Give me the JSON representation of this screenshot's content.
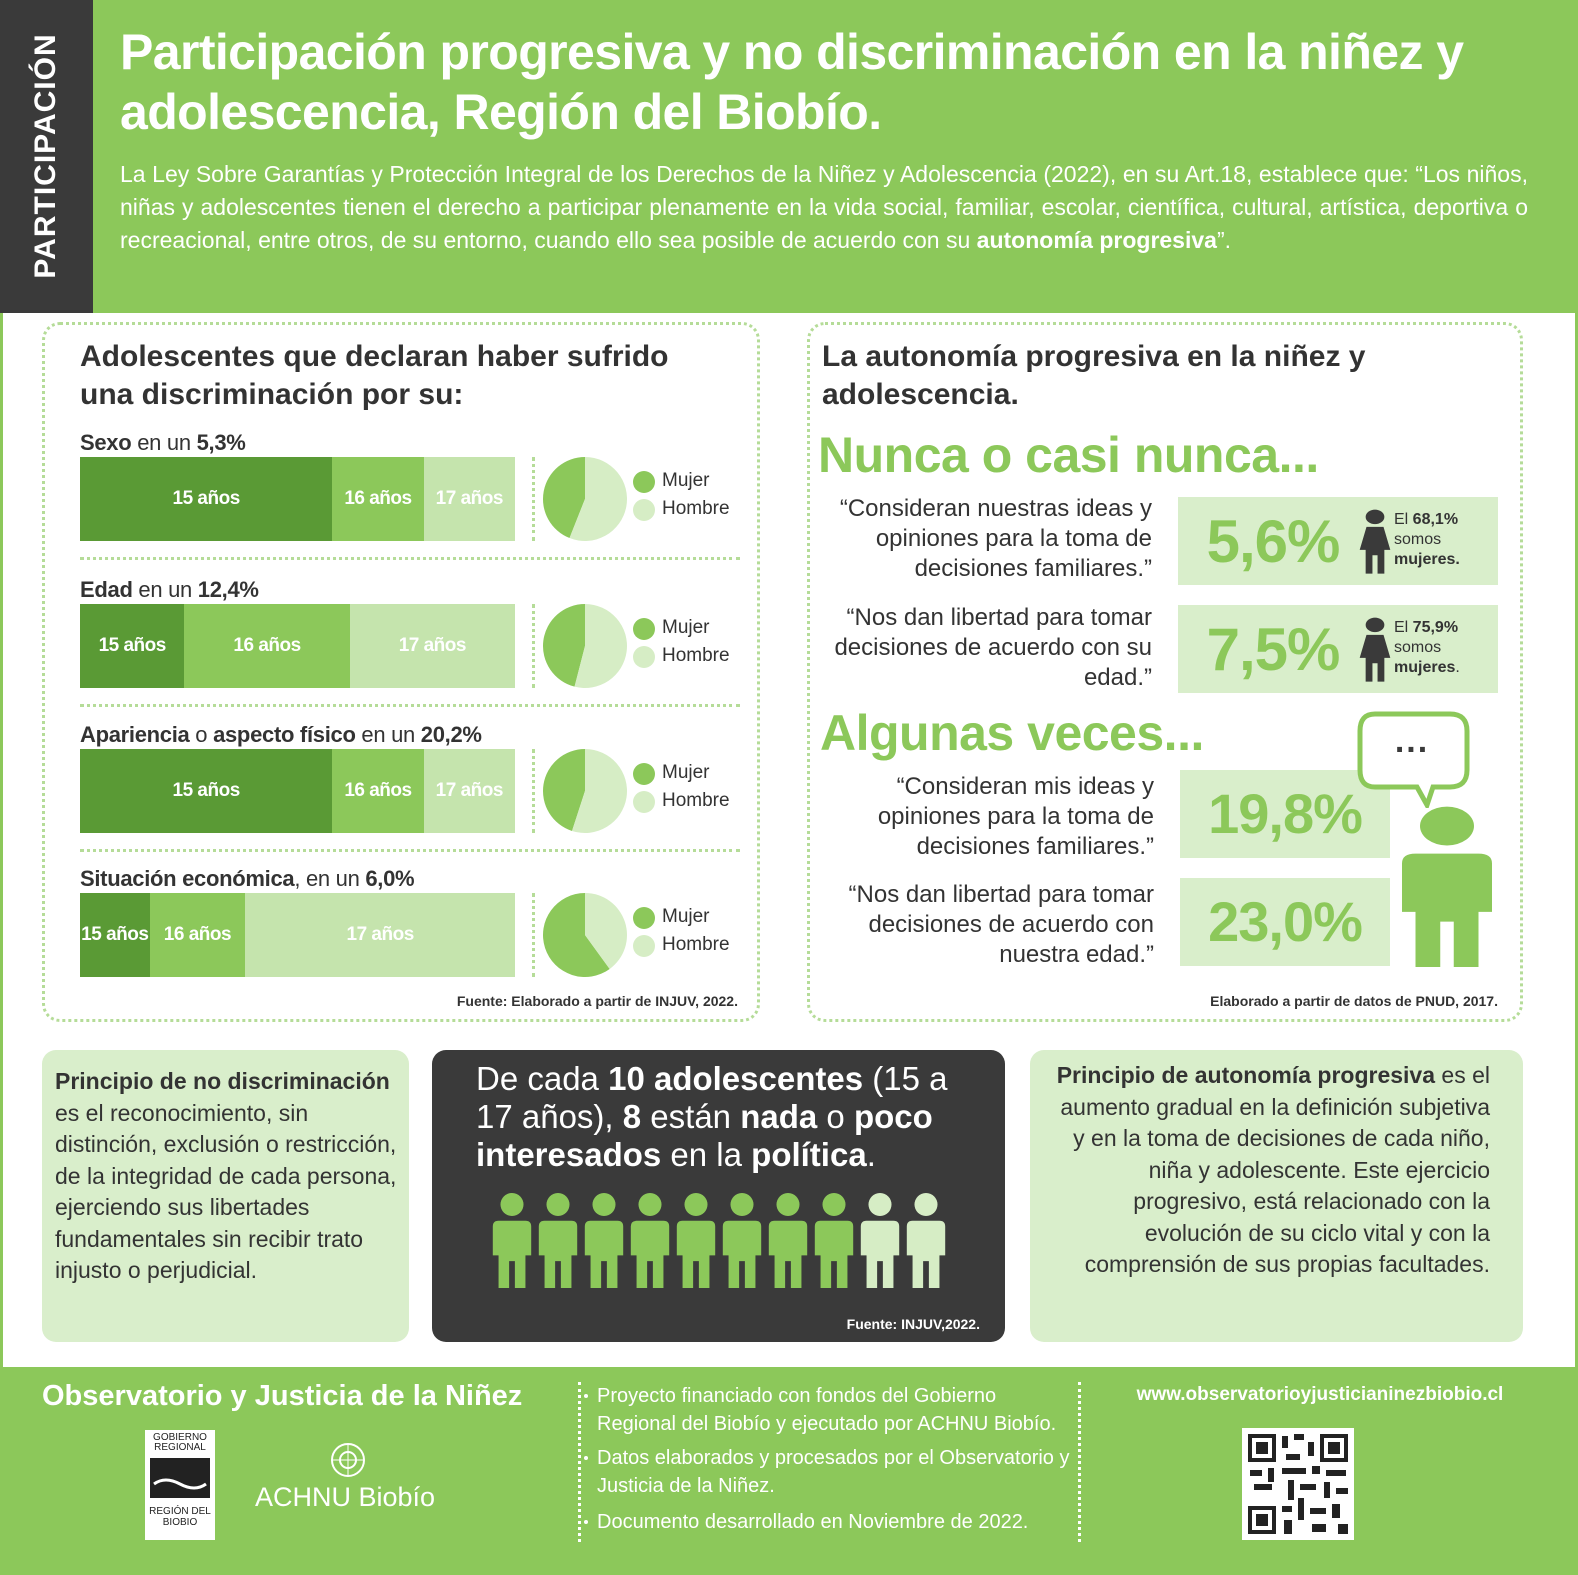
{
  "header": {
    "side_label": "PARTICIPACIÓN",
    "title": "Participación progresiva y no discriminación en la niñez y adolescencia, Región del Biobío.",
    "intro": [
      "La Ley Sobre Garantías y Protección Integral de los Derechos de la Niñez y Adolescencia (2022), en su Art.18, establece que: “Los niños, niñas y adolescentes tienen el derecho a participar plenamente en la vida social, familiar, escolar, científica, cultural, artística, deportiva o recreacional, entre otros, de su entorno, cuando ello sea posible de acuerdo con su ",
      "autonomía progresiva",
      "”."
    ]
  },
  "discrimination": {
    "title": "Adolescentes que declaran haber sufrido una discriminación por su:",
    "legend": [
      "Mujer",
      "Hombre"
    ],
    "items": [
      {
        "label": [
          "Sexo",
          " en un ",
          "5,3%"
        ],
        "segments": [
          {
            "label": "15 años",
            "value": 58
          },
          {
            "label": "16 años",
            "value": 21
          },
          {
            "label": "17 años",
            "value": 21
          }
        ],
        "pie": [
          44,
          56
        ]
      },
      {
        "label": [
          "Edad",
          " en un ",
          "12,4%"
        ],
        "segments": [
          {
            "label": "15 años",
            "value": 24
          },
          {
            "label": "16 años",
            "value": 38
          },
          {
            "label": "17 años",
            "value": 38
          }
        ],
        "pie": [
          46,
          54
        ]
      },
      {
        "label": [
          "Apariencia",
          " o ",
          "aspecto físico",
          " en un ",
          "20,2%"
        ],
        "segments": [
          {
            "label": "15 años",
            "value": 58
          },
          {
            "label": "16 años",
            "value": 21
          },
          {
            "label": "17 años",
            "value": 21
          }
        ],
        "pie": [
          45,
          55
        ]
      },
      {
        "label": [
          "Situación económica",
          ", en un ",
          "6,0%"
        ],
        "segments": [
          {
            "label": "15 años",
            "value": 16
          },
          {
            "label": "16 años",
            "value": 22
          },
          {
            "label": "17 años",
            "value": 62
          }
        ],
        "pie": [
          60,
          40
        ]
      }
    ],
    "source": "Fuente: Elaborado a partir de INJUV, 2022."
  },
  "autonomy": {
    "title": "La autonomía progresiva en la niñez y adolescencia.",
    "groups": [
      {
        "heading": "Nunca o casi nunca...",
        "items": [
          {
            "quote": "“Consideran nuestras ideas y opiniones para la toma de decisiones familiares.”",
            "value": "5,6%",
            "note": [
              "El ",
              "68,1%",
              " somos ",
              "mujeres."
            ]
          },
          {
            "quote": "“Nos dan libertad para tomar decisiones de acuerdo con su edad.”",
            "value": "7,5%",
            "note": [
              "El ",
              "75,9%",
              " somos ",
              "mujeres",
              "."
            ]
          }
        ]
      },
      {
        "heading": "Algunas veces...",
        "bubble": "...",
        "items": [
          {
            "quote": "“Consideran mis ideas y opiniones para la toma de decisiones familiares.”",
            "value": "19,8%"
          },
          {
            "quote": "“Nos dan libertad para tomar decisiones de acuerdo con nuestra edad.”",
            "value": "23,0%"
          }
        ]
      }
    ],
    "source": "Elaborado a partir de datos de PNUD, 2017."
  },
  "principles": {
    "non_discrimination": [
      "Principio de no discriminación",
      " es el reconocimiento, sin distinción, exclusión o restricción, de la integridad de cada persona, ejerciendo sus libertades fundamentales sin recibir trato injusto o perjudicial."
    ],
    "politics": [
      "De cada ",
      "10 adolescentes",
      " (15 a 17 años), ",
      "8",
      " están ",
      "nada",
      " o ",
      "poco interesados",
      " en la ",
      "política",
      "."
    ],
    "politics_source": "Fuente: INJUV,2022.",
    "autonomy": [
      "Principio de autonomía progresiva",
      " es el aumento gradual en la definición subjetiva y en la toma de decisiones de cada niño, niña y adolescente. Este ejercicio progresivo, está relacionado con la evolución de su ciclo vital y con la comprensión de sus propias facultades."
    ]
  },
  "footer": {
    "org": "Observatorio y Justicia de la Niñez",
    "logo_gob": [
      "GOBIERNO REGIONAL",
      "REGIÓN DEL BIOBIO"
    ],
    "logo_achnu": "ACHNU Biobío",
    "notes": [
      "Proyecto financiado con fondos del Gobierno Regional del Biobío y ejecutado por ACHNU Biobío.",
      "Datos elaborados y procesados por el Observatorio y Justicia de la Niñez.",
      "Documento desarrollado en Noviembre de 2022."
    ],
    "website": "www.observatorioyjusticianinezbiobio.cl"
  }
}
